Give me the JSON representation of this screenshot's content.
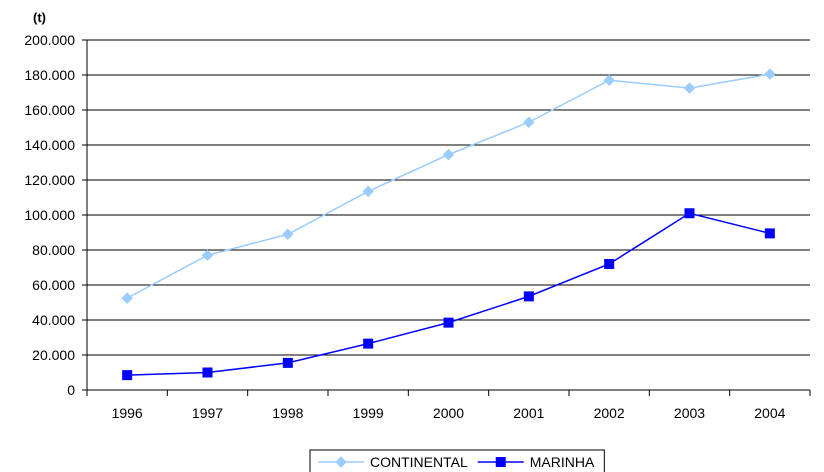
{
  "chart_data": {
    "type": "line",
    "unit_label": "(t)",
    "categories": [
      "1996",
      "1997",
      "1998",
      "1999",
      "2000",
      "2001",
      "2002",
      "2003",
      "2004"
    ],
    "ylim": [
      0,
      200000
    ],
    "yticks": [
      0,
      20000,
      40000,
      60000,
      80000,
      100000,
      120000,
      140000,
      160000,
      180000,
      200000
    ],
    "ytick_labels": [
      "0",
      "20.000",
      "40.000",
      "60.000",
      "80.000",
      "100.000",
      "120.000",
      "140.000",
      "160.000",
      "180.000",
      "200.000"
    ],
    "grid": true,
    "legend_position": "bottom",
    "series": [
      {
        "name": "CONTINENTAL",
        "color": "#99ccff",
        "marker": "diamond",
        "values": [
          52500,
          77000,
          89000,
          113500,
          134500,
          153000,
          177000,
          172500,
          180500
        ]
      },
      {
        "name": "MARINHA",
        "color": "#0000ff",
        "marker": "square",
        "values": [
          8500,
          10000,
          15500,
          26500,
          38500,
          53500,
          72000,
          101000,
          89500
        ]
      }
    ]
  }
}
